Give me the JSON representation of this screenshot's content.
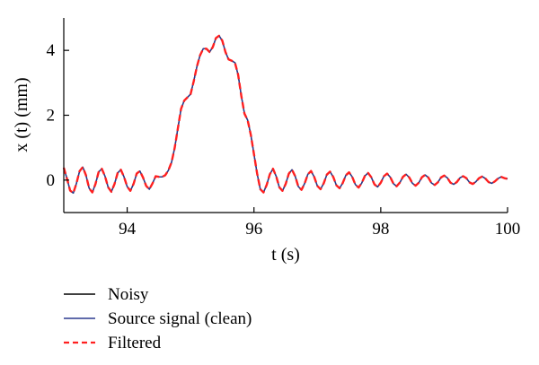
{
  "chart_data": {
    "type": "line",
    "title": "",
    "xlabel": "t (s)",
    "ylabel": "x (t) (mm)",
    "xlim": [
      93,
      100
    ],
    "ylim": [
      -1,
      5
    ],
    "x_ticks": [
      94,
      96,
      98,
      100
    ],
    "y_ticks": [
      0,
      2,
      4
    ],
    "x_tick_labels": [
      "94",
      "96",
      "98",
      "100"
    ],
    "y_tick_labels": [
      "0",
      "2",
      "4"
    ],
    "grid": false,
    "legend_position": "bottom-left-outside",
    "legend": [
      "Noisy",
      "Source signal (clean)",
      "Filtered"
    ],
    "series": [
      {
        "name": "Noisy",
        "color": "#000000",
        "style": "solid",
        "x": [
          93.0,
          93.05,
          93.1,
          93.15,
          93.2,
          93.25,
          93.3,
          93.35,
          93.4,
          93.45,
          93.5,
          93.55,
          93.6,
          93.65,
          93.7,
          93.75,
          93.8,
          93.85,
          93.9,
          93.95,
          94.0,
          94.05,
          94.1,
          94.15,
          94.2,
          94.25,
          94.3,
          94.35,
          94.4,
          94.45,
          94.5,
          94.55,
          94.6,
          94.65,
          94.7,
          94.75,
          94.8,
          94.85,
          94.9,
          94.95,
          95.0,
          95.05,
          95.1,
          95.15,
          95.2,
          95.25,
          95.3,
          95.35,
          95.4,
          95.45,
          95.5,
          95.55,
          95.6,
          95.65,
          95.7,
          95.75,
          95.8,
          95.85,
          95.9,
          95.95,
          96.0,
          96.05,
          96.1,
          96.15,
          96.2,
          96.25,
          96.3,
          96.35,
          96.4,
          96.45,
          96.5,
          96.55,
          96.6,
          96.65,
          96.7,
          96.75,
          96.8,
          96.85,
          96.9,
          96.95,
          97.0,
          97.05,
          97.1,
          97.15,
          97.2,
          97.25,
          97.3,
          97.35,
          97.4,
          97.45,
          97.5,
          97.55,
          97.6,
          97.65,
          97.7,
          97.75,
          97.8,
          97.85,
          97.9,
          97.95,
          98.0,
          98.05,
          98.1,
          98.15,
          98.2,
          98.25,
          98.3,
          98.35,
          98.4,
          98.45,
          98.5,
          98.55,
          98.6,
          98.65,
          98.7,
          98.75,
          98.8,
          98.85,
          98.9,
          98.95,
          99.0,
          99.05,
          99.1,
          99.15,
          99.2,
          99.25,
          99.3,
          99.35,
          99.4,
          99.45,
          99.5,
          99.55,
          99.6,
          99.65,
          99.7,
          99.75,
          99.8,
          99.85,
          99.9,
          99.95,
          100.0
        ],
        "y": [
          0.38,
          0.05,
          -0.32,
          -0.4,
          -0.1,
          0.28,
          0.4,
          0.15,
          -0.25,
          -0.38,
          -0.12,
          0.25,
          0.35,
          0.12,
          -0.22,
          -0.36,
          -0.12,
          0.22,
          0.32,
          0.1,
          -0.2,
          -0.33,
          -0.12,
          0.2,
          0.28,
          0.08,
          -0.18,
          -0.28,
          -0.1,
          0.12,
          0.1,
          0.1,
          0.15,
          0.3,
          0.55,
          1.0,
          1.6,
          2.2,
          2.45,
          2.55,
          2.65,
          3.05,
          3.5,
          3.85,
          4.05,
          4.05,
          3.95,
          4.1,
          4.38,
          4.45,
          4.3,
          3.95,
          3.72,
          3.68,
          3.62,
          3.25,
          2.6,
          2.05,
          1.85,
          1.4,
          0.8,
          0.2,
          -0.28,
          -0.38,
          -0.15,
          0.18,
          0.35,
          0.12,
          -0.22,
          -0.33,
          -0.12,
          0.2,
          0.32,
          0.12,
          -0.2,
          -0.3,
          -0.1,
          0.18,
          0.28,
          0.1,
          -0.18,
          -0.28,
          -0.1,
          0.17,
          0.26,
          0.1,
          -0.16,
          -0.25,
          -0.09,
          0.15,
          0.24,
          0.1,
          -0.14,
          -0.23,
          -0.09,
          0.13,
          0.22,
          0.09,
          -0.13,
          -0.21,
          -0.08,
          0.12,
          0.2,
          0.09,
          -0.11,
          -0.19,
          -0.08,
          0.1,
          0.18,
          0.08,
          -0.1,
          -0.17,
          -0.08,
          0.09,
          0.16,
          0.08,
          -0.09,
          -0.15,
          -0.07,
          0.08,
          0.14,
          0.07,
          -0.08,
          -0.13,
          -0.06,
          0.07,
          0.12,
          0.06,
          -0.07,
          -0.12,
          -0.05,
          0.06,
          0.11,
          0.05,
          -0.06,
          -0.1,
          -0.04,
          0.05,
          0.1,
          0.06,
          0.04
        ]
      },
      {
        "name": "Source signal (clean)",
        "color": "#2b3a8f",
        "style": "solid",
        "x": [
          93.0,
          93.05,
          93.1,
          93.15,
          93.2,
          93.25,
          93.3,
          93.35,
          93.4,
          93.45,
          93.5,
          93.55,
          93.6,
          93.65,
          93.7,
          93.75,
          93.8,
          93.85,
          93.9,
          93.95,
          94.0,
          94.05,
          94.1,
          94.15,
          94.2,
          94.25,
          94.3,
          94.35,
          94.4,
          94.45,
          94.5,
          94.55,
          94.6,
          94.65,
          94.7,
          94.75,
          94.8,
          94.85,
          94.9,
          94.95,
          95.0,
          95.05,
          95.1,
          95.15,
          95.2,
          95.25,
          95.3,
          95.35,
          95.4,
          95.45,
          95.5,
          95.55,
          95.6,
          95.65,
          95.7,
          95.75,
          95.8,
          95.85,
          95.9,
          95.95,
          96.0,
          96.05,
          96.1,
          96.15,
          96.2,
          96.25,
          96.3,
          96.35,
          96.4,
          96.45,
          96.5,
          96.55,
          96.6,
          96.65,
          96.7,
          96.75,
          96.8,
          96.85,
          96.9,
          96.95,
          97.0,
          97.05,
          97.1,
          97.15,
          97.2,
          97.25,
          97.3,
          97.35,
          97.4,
          97.45,
          97.5,
          97.55,
          97.6,
          97.65,
          97.7,
          97.75,
          97.8,
          97.85,
          97.9,
          97.95,
          98.0,
          98.05,
          98.1,
          98.15,
          98.2,
          98.25,
          98.3,
          98.35,
          98.4,
          98.45,
          98.5,
          98.55,
          98.6,
          98.65,
          98.7,
          98.75,
          98.8,
          98.85,
          98.9,
          98.95,
          99.0,
          99.05,
          99.1,
          99.15,
          99.2,
          99.25,
          99.3,
          99.35,
          99.4,
          99.45,
          99.5,
          99.55,
          99.6,
          99.65,
          99.7,
          99.75,
          99.8,
          99.85,
          99.9,
          99.95,
          100.0
        ],
        "y": [
          0.38,
          0.05,
          -0.32,
          -0.4,
          -0.1,
          0.28,
          0.4,
          0.15,
          -0.25,
          -0.38,
          -0.12,
          0.25,
          0.35,
          0.12,
          -0.22,
          -0.36,
          -0.12,
          0.22,
          0.32,
          0.1,
          -0.2,
          -0.33,
          -0.12,
          0.2,
          0.28,
          0.08,
          -0.18,
          -0.28,
          -0.1,
          0.12,
          0.1,
          0.1,
          0.15,
          0.3,
          0.55,
          1.0,
          1.6,
          2.2,
          2.45,
          2.55,
          2.65,
          3.05,
          3.5,
          3.85,
          4.05,
          4.05,
          3.95,
          4.1,
          4.38,
          4.45,
          4.3,
          3.95,
          3.72,
          3.68,
          3.62,
          3.25,
          2.6,
          2.05,
          1.85,
          1.4,
          0.8,
          0.2,
          -0.28,
          -0.38,
          -0.15,
          0.18,
          0.35,
          0.12,
          -0.22,
          -0.33,
          -0.12,
          0.2,
          0.32,
          0.12,
          -0.2,
          -0.3,
          -0.1,
          0.18,
          0.28,
          0.1,
          -0.18,
          -0.28,
          -0.1,
          0.17,
          0.26,
          0.1,
          -0.16,
          -0.25,
          -0.09,
          0.15,
          0.24,
          0.1,
          -0.14,
          -0.23,
          -0.09,
          0.13,
          0.22,
          0.09,
          -0.13,
          -0.21,
          -0.08,
          0.12,
          0.2,
          0.09,
          -0.11,
          -0.19,
          -0.08,
          0.1,
          0.18,
          0.08,
          -0.1,
          -0.17,
          -0.08,
          0.09,
          0.16,
          0.08,
          -0.09,
          -0.15,
          -0.07,
          0.08,
          0.14,
          0.07,
          -0.08,
          -0.13,
          -0.06,
          0.07,
          0.12,
          0.06,
          -0.07,
          -0.12,
          -0.05,
          0.06,
          0.11,
          0.05,
          -0.06,
          -0.1,
          -0.04,
          0.05,
          0.1,
          0.06,
          0.04
        ]
      },
      {
        "name": "Filtered",
        "color": "#ff2020",
        "style": "dashed",
        "x": [
          93.0,
          93.05,
          93.1,
          93.15,
          93.2,
          93.25,
          93.3,
          93.35,
          93.4,
          93.45,
          93.5,
          93.55,
          93.6,
          93.65,
          93.7,
          93.75,
          93.8,
          93.85,
          93.9,
          93.95,
          94.0,
          94.05,
          94.1,
          94.15,
          94.2,
          94.25,
          94.3,
          94.35,
          94.4,
          94.45,
          94.5,
          94.55,
          94.6,
          94.65,
          94.7,
          94.75,
          94.8,
          94.85,
          94.9,
          94.95,
          95.0,
          95.05,
          95.1,
          95.15,
          95.2,
          95.25,
          95.3,
          95.35,
          95.4,
          95.45,
          95.5,
          95.55,
          95.6,
          95.65,
          95.7,
          95.75,
          95.8,
          95.85,
          95.9,
          95.95,
          96.0,
          96.05,
          96.1,
          96.15,
          96.2,
          96.25,
          96.3,
          96.35,
          96.4,
          96.45,
          96.5,
          96.55,
          96.6,
          96.65,
          96.7,
          96.75,
          96.8,
          96.85,
          96.9,
          96.95,
          97.0,
          97.05,
          97.1,
          97.15,
          97.2,
          97.25,
          97.3,
          97.35,
          97.4,
          97.45,
          97.5,
          97.55,
          97.6,
          97.65,
          97.7,
          97.75,
          97.8,
          97.85,
          97.9,
          97.95,
          98.0,
          98.05,
          98.1,
          98.15,
          98.2,
          98.25,
          98.3,
          98.35,
          98.4,
          98.45,
          98.5,
          98.55,
          98.6,
          98.65,
          98.7,
          98.75,
          98.8,
          98.85,
          98.9,
          98.95,
          99.0,
          99.05,
          99.1,
          99.15,
          99.2,
          99.25,
          99.3,
          99.35,
          99.4,
          99.45,
          99.5,
          99.55,
          99.6,
          99.65,
          99.7,
          99.75,
          99.8,
          99.85,
          99.9,
          99.95,
          100.0
        ],
        "y": [
          0.38,
          0.05,
          -0.32,
          -0.4,
          -0.1,
          0.28,
          0.4,
          0.15,
          -0.25,
          -0.38,
          -0.12,
          0.25,
          0.35,
          0.12,
          -0.22,
          -0.36,
          -0.12,
          0.22,
          0.32,
          0.1,
          -0.2,
          -0.33,
          -0.12,
          0.2,
          0.28,
          0.08,
          -0.18,
          -0.28,
          -0.1,
          0.12,
          0.1,
          0.1,
          0.15,
          0.3,
          0.55,
          1.0,
          1.6,
          2.2,
          2.45,
          2.55,
          2.65,
          3.05,
          3.5,
          3.85,
          4.05,
          4.05,
          3.95,
          4.1,
          4.38,
          4.45,
          4.3,
          3.95,
          3.72,
          3.68,
          3.62,
          3.25,
          2.6,
          2.05,
          1.85,
          1.4,
          0.8,
          0.2,
          -0.28,
          -0.38,
          -0.15,
          0.18,
          0.35,
          0.12,
          -0.22,
          -0.33,
          -0.12,
          0.2,
          0.32,
          0.12,
          -0.2,
          -0.3,
          -0.1,
          0.18,
          0.28,
          0.1,
          -0.18,
          -0.28,
          -0.1,
          0.17,
          0.26,
          0.1,
          -0.16,
          -0.25,
          -0.09,
          0.15,
          0.24,
          0.1,
          -0.14,
          -0.23,
          -0.09,
          0.13,
          0.22,
          0.09,
          -0.13,
          -0.21,
          -0.08,
          0.12,
          0.2,
          0.09,
          -0.11,
          -0.19,
          -0.08,
          0.1,
          0.18,
          0.08,
          -0.1,
          -0.17,
          -0.08,
          0.09,
          0.16,
          0.08,
          -0.09,
          -0.15,
          -0.07,
          0.08,
          0.14,
          0.07,
          -0.08,
          -0.13,
          -0.06,
          0.07,
          0.12,
          0.06,
          -0.07,
          -0.12,
          -0.05,
          0.06,
          0.11,
          0.05,
          -0.06,
          -0.1,
          -0.04,
          0.05,
          0.1,
          0.06,
          0.04
        ]
      }
    ]
  }
}
